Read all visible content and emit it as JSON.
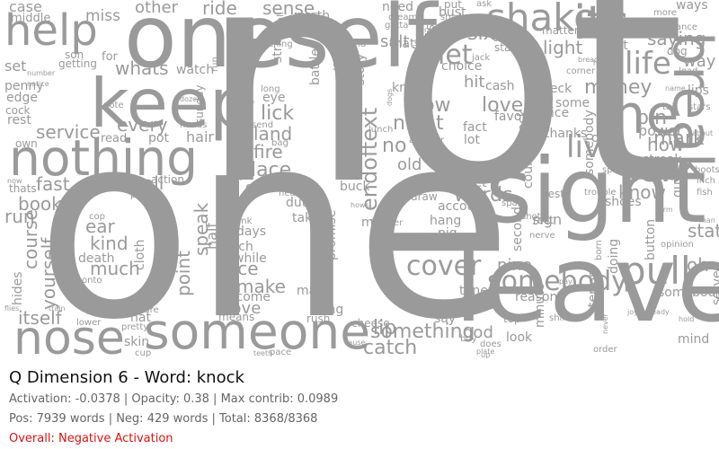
{
  "title": "Q Dimension 6 - Word: knock",
  "stats_line": "Activation: -0.0378 | Opacity: 0.38 | Max contrib: 0.0989",
  "counts_line": "Pos: 7939 words | Neg: 429 words | Total: 8368/8368",
  "overall": "Overall: Negative Activation",
  "colors": {
    "word": "#9a9a9a",
    "overall": "#dd1111",
    "title": "#111111",
    "meta": "#666666"
  },
  "words": [
    "not",
    "one",
    "oneself",
    "leave",
    "sight",
    "keep",
    "nothing",
    "someone",
    "nose",
    "help",
    "break",
    "me",
    "its",
    "shake",
    "cover",
    "somebody",
    "pull",
    "life",
    "new",
    "live",
    "money",
    "mark",
    "endoftext",
    "lick",
    "land",
    "fire",
    "place",
    "light",
    "let",
    "six",
    "salt",
    "lip",
    "catch",
    "something",
    "words",
    "see",
    "love",
    "blow",
    "night",
    "no",
    "old",
    "saying",
    "way",
    "ways",
    "pin",
    "power",
    "how",
    "streak",
    "know",
    "state",
    "oh",
    "six",
    "service",
    "every",
    "call",
    "book",
    "run",
    "itself",
    "yourself",
    "course",
    "kind",
    "ear",
    "much",
    "point",
    "speak",
    "half",
    "face",
    "make",
    "move",
    "become",
    "means",
    "many",
    "bring",
    "hair",
    "pot",
    "read",
    "whats",
    "rest",
    "own",
    "set",
    "case",
    "middle",
    "miss",
    "for",
    "other",
    "ride",
    "sense",
    "worth",
    "battle",
    "suck",
    "story",
    "need",
    "bust",
    "put",
    "ask",
    "that",
    "ones",
    "hit",
    "choice",
    "cash",
    "neck",
    "nine",
    "tune",
    "god",
    "eyes",
    "top",
    "look",
    "minute",
    "reason",
    "terms",
    "mind",
    "serve",
    "somebodys",
    "lips",
    "lift",
    "hang",
    "days",
    "pitch",
    "while",
    "take",
    "drink",
    "duty",
    "promise",
    "what",
    "my",
    "buck",
    "second",
    "account",
    "spare",
    "shoes",
    "button",
    "quite",
    "doing",
    "somebody",
    "cop",
    "cloth",
    "death",
    "onto",
    "action",
    "give",
    "heart",
    "favor",
    "fact",
    "lot",
    "feet",
    "draw",
    "best",
    "trouble",
    "thanks",
    "nice",
    "our",
    "some",
    "matter",
    "nerve",
    "count",
    "check",
    "force",
    "cloud",
    "another",
    "knock",
    "eye",
    "note",
    "lunch",
    "hands",
    "sunday",
    "murder",
    "dozen",
    "dogs",
    "getting",
    "son",
    "penny",
    "edge",
    "cock",
    "now",
    "hides",
    "flies",
    "train",
    "rush",
    "cheese",
    "feather",
    "shadow",
    "jack",
    "wits",
    "long",
    "send",
    "watch",
    "pair",
    "shot",
    "bag",
    "more",
    "chance",
    "lower",
    "pretty",
    "cup",
    "hat",
    "care",
    "skin",
    "buy",
    "plate",
    "teeth",
    "cause",
    "shirt",
    "never",
    "order",
    "hope",
    "stand",
    "hold",
    "ready",
    "pay",
    "joy",
    "born",
    "tail",
    "stars",
    "boots",
    "inch",
    "fish",
    "man",
    "form",
    "opinion",
    "heads",
    "spirit",
    "strike",
    "little",
    "small",
    "about",
    "fast",
    "thats",
    "hows",
    "rest",
    "sign",
    "pig",
    "air",
    "say",
    "does",
    "up",
    "against",
    "mouth",
    "pace",
    "run",
    "thing",
    "beyond",
    "pink",
    "slip",
    "dream",
    "gotta",
    "rake",
    "dog",
    "lead",
    "name",
    "corner",
    "debt",
    "bread",
    "number",
    "notice",
    "deal",
    "lay"
  ]
}
